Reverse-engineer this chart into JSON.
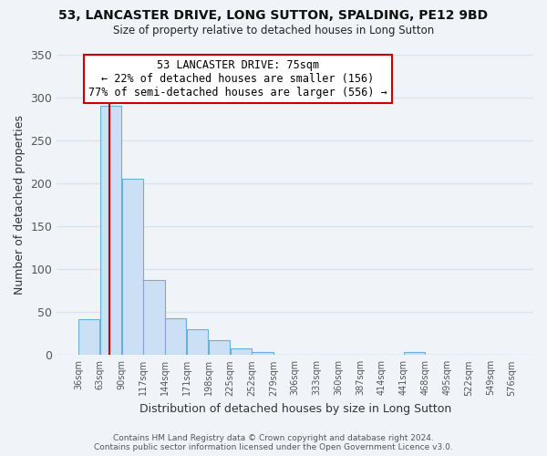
{
  "title": "53, LANCASTER DRIVE, LONG SUTTON, SPALDING, PE12 9BD",
  "subtitle": "Size of property relative to detached houses in Long Sutton",
  "xlabel": "Distribution of detached houses by size in Long Sutton",
  "ylabel": "Number of detached properties",
  "bar_edges": [
    36,
    63,
    90,
    117,
    144,
    171,
    198,
    225,
    252,
    279,
    306,
    333,
    360,
    387,
    414,
    441,
    468,
    495,
    522,
    549,
    576
  ],
  "bar_heights": [
    42,
    290,
    205,
    87,
    43,
    30,
    17,
    8,
    4,
    0,
    0,
    0,
    0,
    0,
    0,
    3,
    0,
    0,
    0,
    0
  ],
  "bar_color": "#cce0f5",
  "bar_edge_color": "#6baed6",
  "property_line_x": 75,
  "property_line_color": "#cc0000",
  "ylim": [
    0,
    350
  ],
  "yticks": [
    0,
    50,
    100,
    150,
    200,
    250,
    300,
    350
  ],
  "annotation_title": "53 LANCASTER DRIVE: 75sqm",
  "annotation_line1": "← 22% of detached houses are smaller (156)",
  "annotation_line2": "77% of semi-detached houses are larger (556) →",
  "annotation_box_color": "#ffffff",
  "annotation_box_edge": "#cc0000",
  "footer_line1": "Contains HM Land Registry data © Crown copyright and database right 2024.",
  "footer_line2": "Contains public sector information licensed under the Open Government Licence v3.0.",
  "background_color": "#f0f4f8",
  "grid_color": "#d8e4f0",
  "tick_label_color": "#555555",
  "axis_label_color": "#333333"
}
